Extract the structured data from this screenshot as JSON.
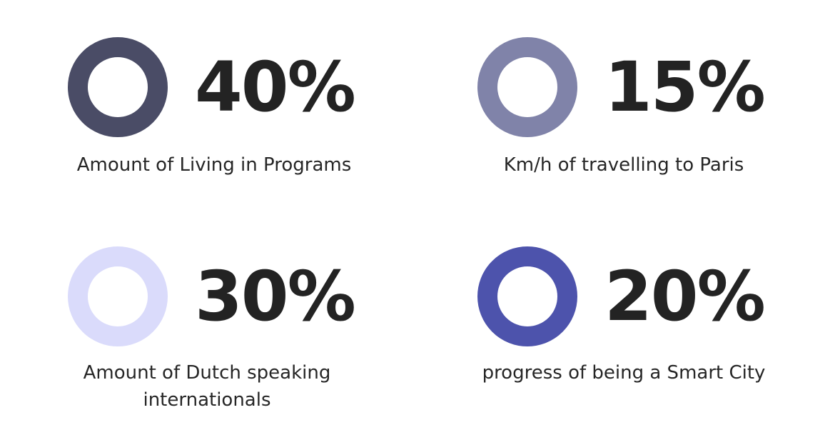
{
  "stats": [
    {
      "value": "40%",
      "caption": "Amount of Living in Programs",
      "ring_color": "#4a4c66"
    },
    {
      "value": "15%",
      "caption": "Km/h of travelling to Paris",
      "ring_color": "#8083a9"
    },
    {
      "value": "30%",
      "caption": "Amount of Dutch speaking internationals",
      "ring_color": "#dadbfb"
    },
    {
      "value": "20%",
      "caption": "progress of being a Smart City",
      "ring_color": "#4d53ac"
    }
  ]
}
